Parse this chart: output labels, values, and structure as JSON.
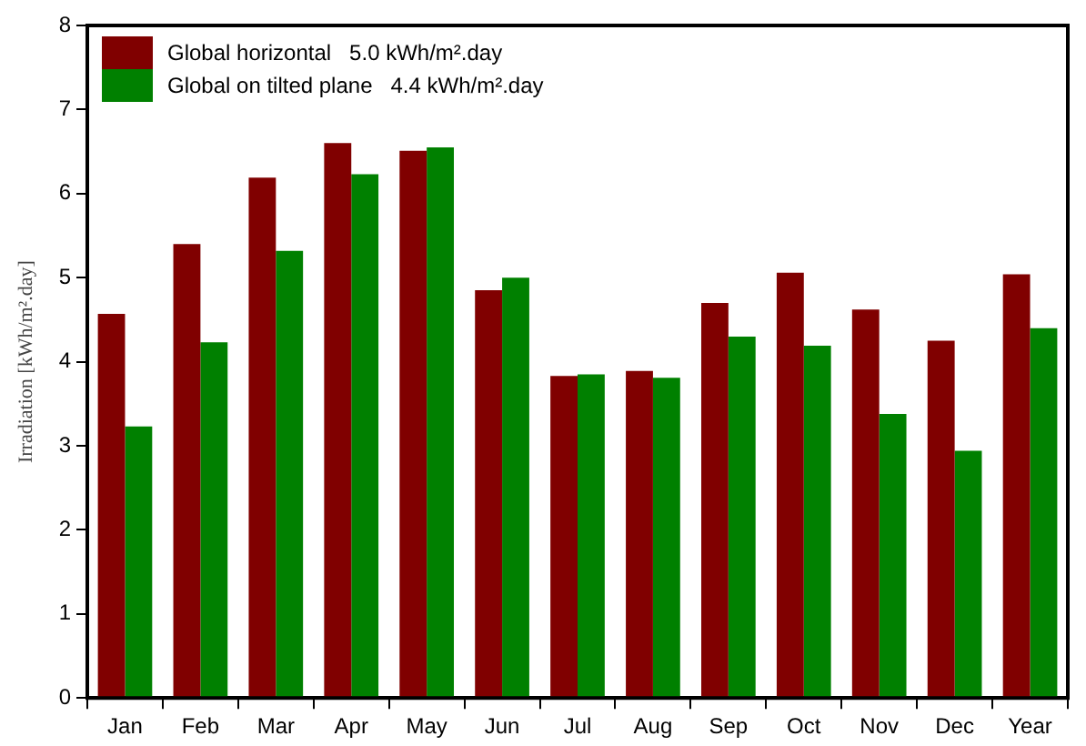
{
  "chart_data": {
    "type": "bar",
    "ylabel": "Irradiation [kWh/m².day]",
    "categories": [
      "Jan",
      "Feb",
      "Mar",
      "Apr",
      "May",
      "Jun",
      "Jul",
      "Aug",
      "Sep",
      "Oct",
      "Nov",
      "Dec",
      "Year"
    ],
    "series": [
      {
        "name": "Global horizontal   5.0 kWh/m².day",
        "color": "#800000",
        "values": [
          4.57,
          5.4,
          6.19,
          6.6,
          6.51,
          4.85,
          3.83,
          3.89,
          4.7,
          5.06,
          4.62,
          4.25,
          5.04
        ]
      },
      {
        "name": "Global on tilted plane   4.4 kWh/m².day",
        "color": "#008000",
        "values": [
          3.23,
          4.23,
          5.32,
          6.23,
          6.55,
          5.0,
          3.85,
          3.81,
          4.3,
          4.19,
          3.38,
          2.94,
          4.4
        ]
      }
    ],
    "ylim": [
      0,
      8
    ],
    "yticks": [
      0,
      1,
      2,
      3,
      4,
      5,
      6,
      7,
      8
    ],
    "grid": false,
    "legend": "top left"
  }
}
